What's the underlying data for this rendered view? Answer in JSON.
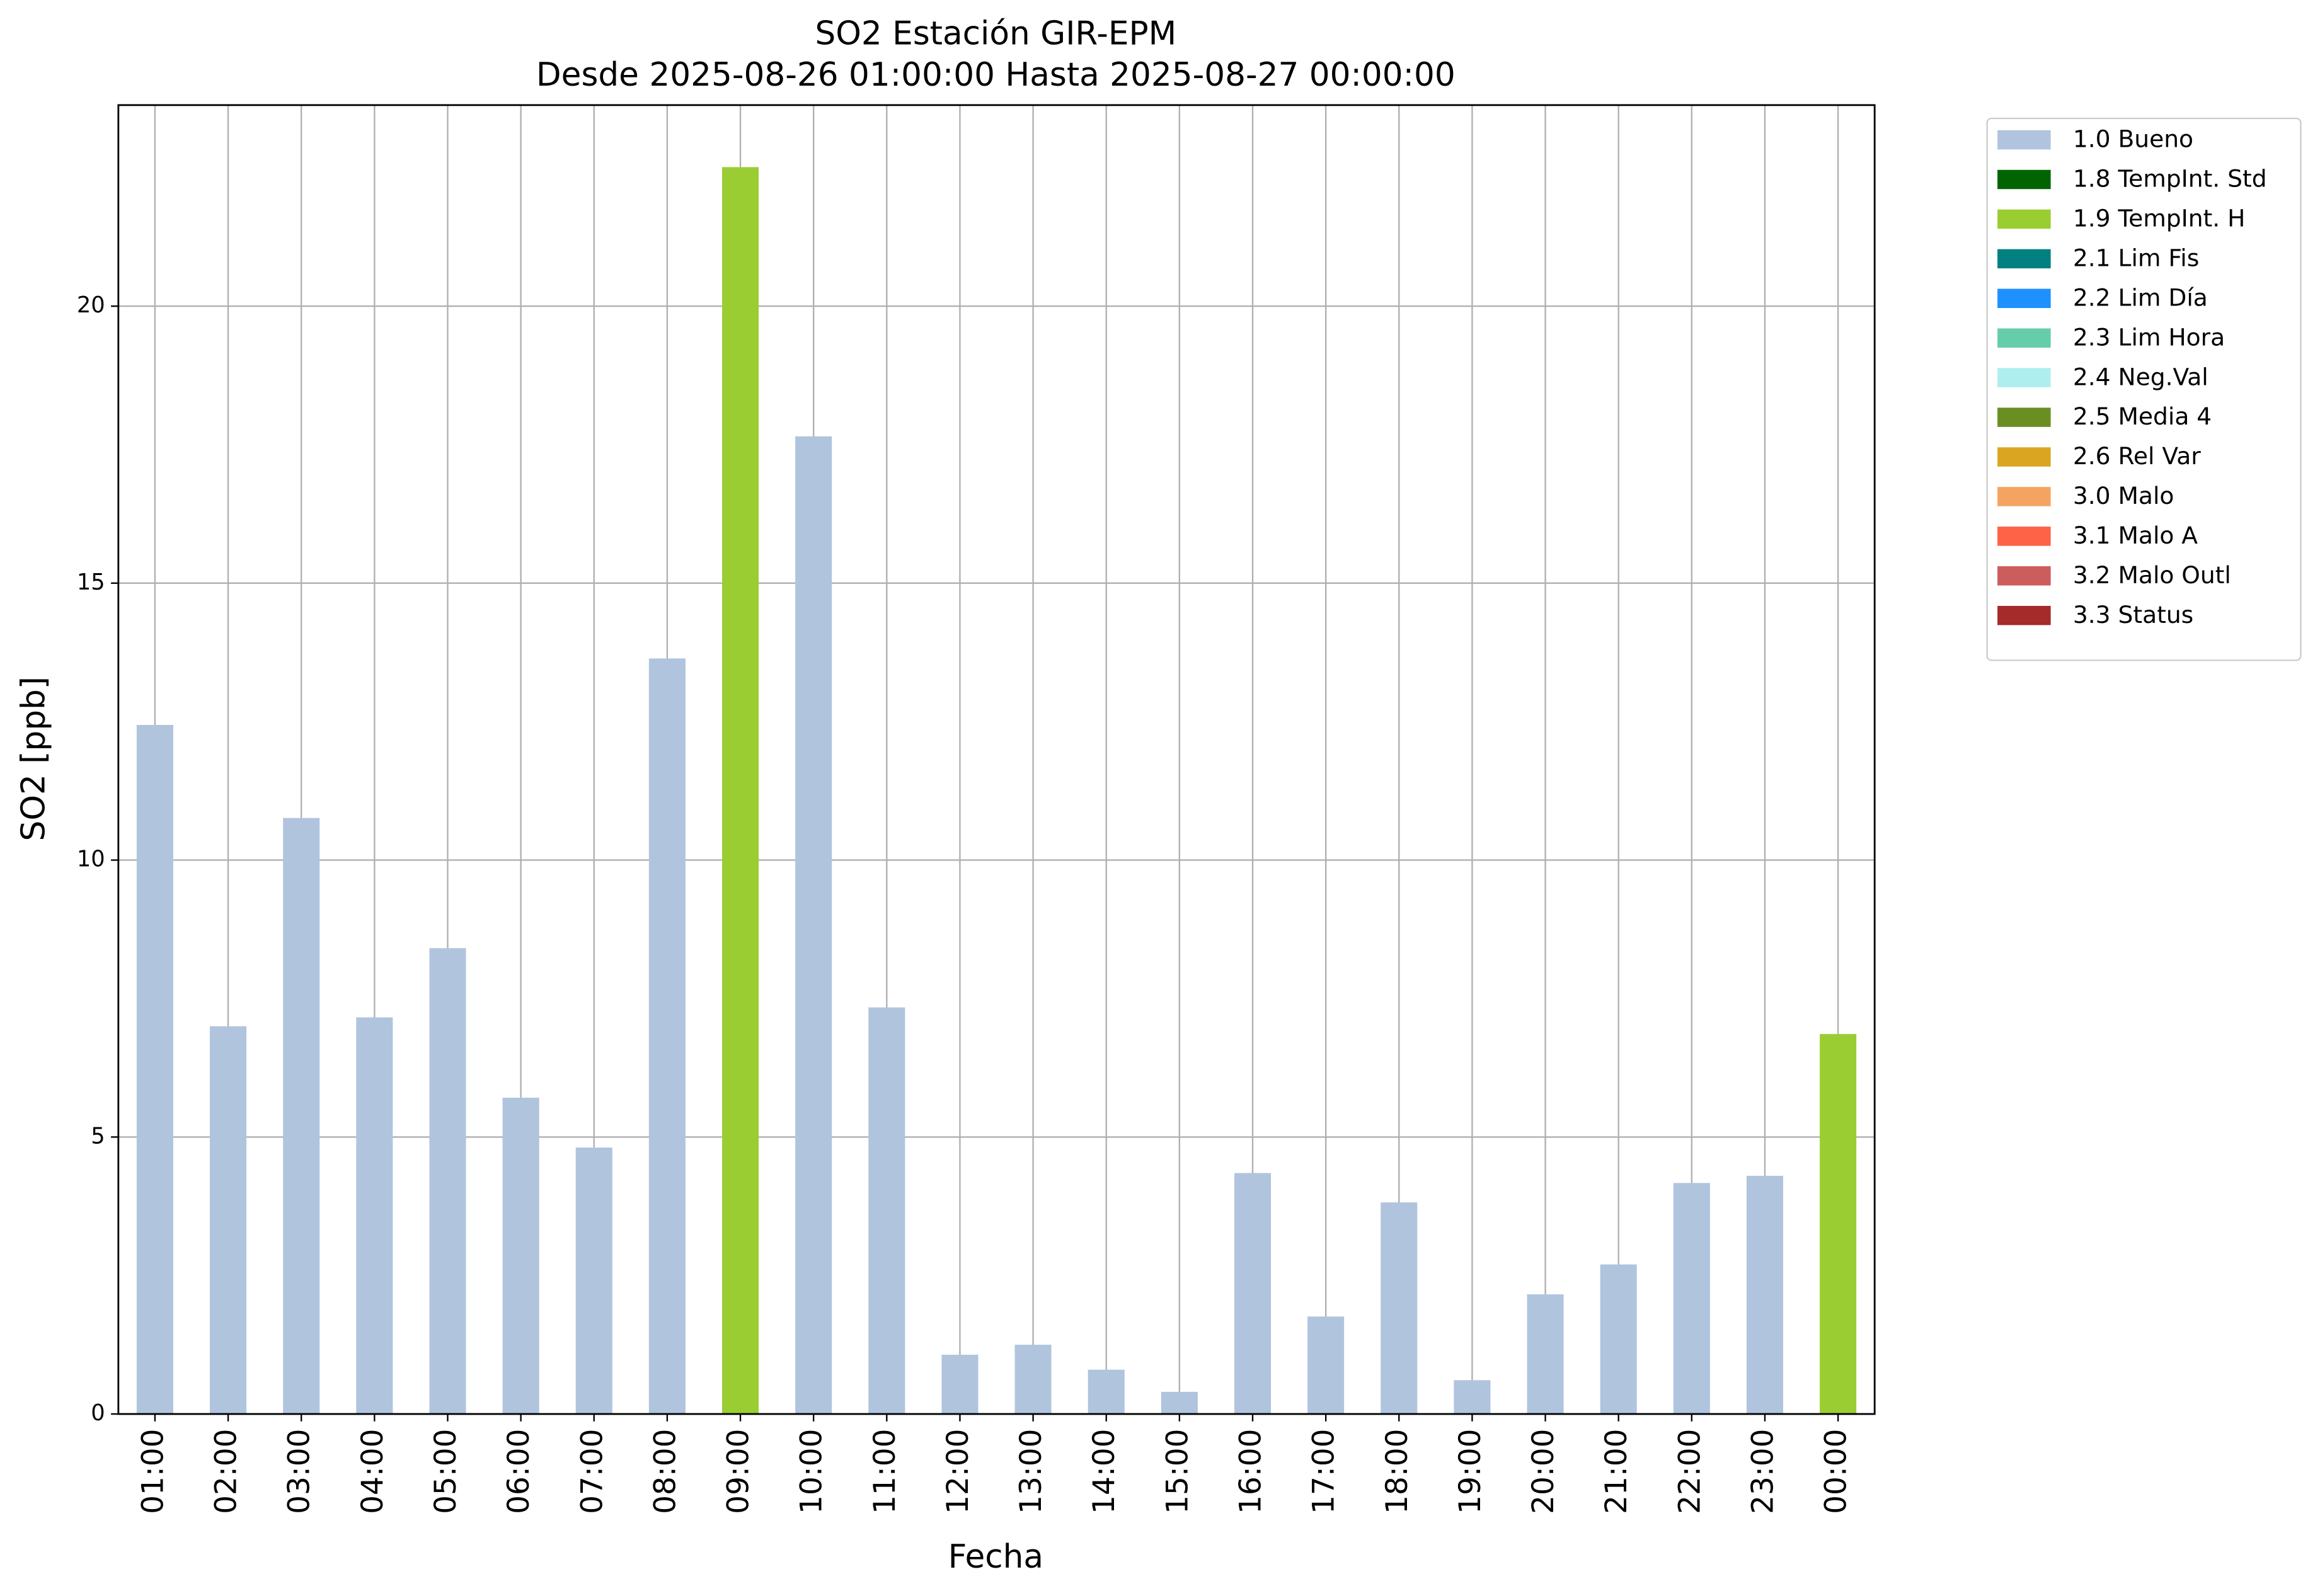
{
  "chart_data": {
    "type": "bar",
    "stacked": true,
    "title": "SO2 Estación GIR-EPM",
    "subtitle": "Desde 2025-08-26 01:00:00 Hasta 2025-08-27 00:00:00",
    "x_label": "Fecha",
    "y_label": "SO2 [ppb]",
    "categories": [
      "01:00",
      "02:00",
      "03:00",
      "04:00",
      "05:00",
      "06:00",
      "07:00",
      "08:00",
      "09:00",
      "10:00",
      "11:00",
      "12:00",
      "13:00",
      "14:00",
      "15:00",
      "16:00",
      "17:00",
      "18:00",
      "19:00",
      "20:00",
      "21:00",
      "22:00",
      "23:00",
      "00:00"
    ],
    "series": [
      {
        "name": "1.0 Bueno",
        "color": "#b0c4de",
        "values": [
          12.44,
          7.0,
          10.76,
          7.16,
          8.41,
          5.71,
          4.81,
          13.64,
          null,
          17.65,
          7.34,
          1.07,
          1.25,
          0.8,
          0.4,
          4.35,
          1.76,
          3.82,
          0.61,
          2.16,
          2.7,
          4.17,
          4.3,
          null
        ]
      },
      {
        "name": "1.8 TempInt. Std",
        "color": "#006400",
        "values": [
          null,
          null,
          null,
          null,
          null,
          null,
          null,
          null,
          null,
          null,
          null,
          null,
          null,
          null,
          null,
          null,
          null,
          null,
          null,
          null,
          null,
          null,
          null,
          null
        ]
      },
      {
        "name": "1.9 TempInt. H",
        "color": "#9acd32",
        "values": [
          null,
          null,
          null,
          null,
          null,
          null,
          null,
          null,
          22.51,
          null,
          null,
          null,
          null,
          null,
          null,
          null,
          null,
          null,
          null,
          null,
          null,
          null,
          null,
          6.86
        ]
      },
      {
        "name": "2.1 Lim Fis",
        "color": "#008080",
        "values": [
          null,
          null,
          null,
          null,
          null,
          null,
          null,
          null,
          null,
          null,
          null,
          null,
          null,
          null,
          null,
          null,
          null,
          null,
          null,
          null,
          null,
          null,
          null,
          null
        ]
      },
      {
        "name": "2.2 Lim Día",
        "color": "#1e90ff",
        "values": [
          null,
          null,
          null,
          null,
          null,
          null,
          null,
          null,
          null,
          null,
          null,
          null,
          null,
          null,
          null,
          null,
          null,
          null,
          null,
          null,
          null,
          null,
          null,
          null
        ]
      },
      {
        "name": "2.3 Lim Hora",
        "color": "#66cdaa",
        "values": [
          null,
          null,
          null,
          null,
          null,
          null,
          null,
          null,
          null,
          null,
          null,
          null,
          null,
          null,
          null,
          null,
          null,
          null,
          null,
          null,
          null,
          null,
          null,
          null
        ]
      },
      {
        "name": "2.4 Neg.Val",
        "color": "#afeeee",
        "values": [
          null,
          null,
          null,
          null,
          null,
          null,
          null,
          null,
          null,
          null,
          null,
          null,
          null,
          null,
          null,
          null,
          null,
          null,
          null,
          null,
          null,
          null,
          null,
          null
        ]
      },
      {
        "name": "2.5 Media 4",
        "color": "#6b8e23",
        "values": [
          null,
          null,
          null,
          null,
          null,
          null,
          null,
          null,
          null,
          null,
          null,
          null,
          null,
          null,
          null,
          null,
          null,
          null,
          null,
          null,
          null,
          null,
          null,
          null
        ]
      },
      {
        "name": "2.6 Rel Var",
        "color": "#daa520",
        "values": [
          null,
          null,
          null,
          null,
          null,
          null,
          null,
          null,
          null,
          null,
          null,
          null,
          null,
          null,
          null,
          null,
          null,
          null,
          null,
          null,
          null,
          null,
          null,
          null
        ]
      },
      {
        "name": "3.0 Malo",
        "color": "#f4a460",
        "values": [
          null,
          null,
          null,
          null,
          null,
          null,
          null,
          null,
          null,
          null,
          null,
          null,
          null,
          null,
          null,
          null,
          null,
          null,
          null,
          null,
          null,
          null,
          null,
          null
        ]
      },
      {
        "name": "3.1 Malo A",
        "color": "#ff6347",
        "values": [
          null,
          null,
          null,
          null,
          null,
          null,
          null,
          null,
          null,
          null,
          null,
          null,
          null,
          null,
          null,
          null,
          null,
          null,
          null,
          null,
          null,
          null,
          null,
          null
        ]
      },
      {
        "name": "3.2 Malo Outl",
        "color": "#cd5c5c",
        "values": [
          null,
          null,
          null,
          null,
          null,
          null,
          null,
          null,
          null,
          null,
          null,
          null,
          null,
          null,
          null,
          null,
          null,
          null,
          null,
          null,
          null,
          null,
          null,
          null
        ]
      },
      {
        "name": "3.3 Status",
        "color": "#a52a2a",
        "values": [
          null,
          null,
          null,
          null,
          null,
          null,
          null,
          null,
          null,
          null,
          null,
          null,
          null,
          null,
          null,
          null,
          null,
          null,
          null,
          null,
          null,
          null,
          null,
          null
        ]
      }
    ],
    "ylim": [
      0,
      23.63
    ],
    "yticks": [
      0,
      5,
      10,
      15,
      20
    ],
    "grid": true,
    "legend": "outside-right"
  }
}
